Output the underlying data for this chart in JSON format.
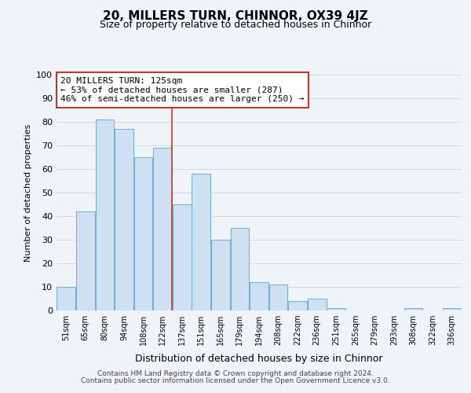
{
  "title": "20, MILLERS TURN, CHINNOR, OX39 4JZ",
  "subtitle": "Size of property relative to detached houses in Chinnor",
  "xlabel": "Distribution of detached houses by size in Chinnor",
  "ylabel": "Number of detached properties",
  "footer_lines": [
    "Contains HM Land Registry data © Crown copyright and database right 2024.",
    "Contains public sector information licensed under the Open Government Licence v3.0."
  ],
  "bin_labels": [
    "51sqm",
    "65sqm",
    "80sqm",
    "94sqm",
    "108sqm",
    "122sqm",
    "137sqm",
    "151sqm",
    "165sqm",
    "179sqm",
    "194sqm",
    "208sqm",
    "222sqm",
    "236sqm",
    "251sqm",
    "265sqm",
    "279sqm",
    "293sqm",
    "308sqm",
    "322sqm",
    "336sqm"
  ],
  "bar_heights": [
    10,
    42,
    81,
    77,
    65,
    69,
    45,
    58,
    30,
    35,
    12,
    11,
    4,
    5,
    1,
    0,
    0,
    0,
    1,
    0,
    1
  ],
  "bar_color": "#cfe0f2",
  "bar_edge_color": "#6aaed6",
  "grid_color": "#d0d8e4",
  "vline_x_index": 5,
  "vline_color": "#c0392b",
  "annotation_line1": "20 MILLERS TURN: 125sqm",
  "annotation_line2": "← 53% of detached houses are smaller (287)",
  "annotation_line3": "46% of semi-detached houses are larger (250) →",
  "annotation_box_color": "#ffffff",
  "annotation_box_edge": "#c0392b",
  "ylim": [
    0,
    100
  ],
  "yticks": [
    0,
    10,
    20,
    30,
    40,
    50,
    60,
    70,
    80,
    90,
    100
  ],
  "background_color": "#f0f4f8",
  "title_fontsize": 11,
  "subtitle_fontsize": 9
}
